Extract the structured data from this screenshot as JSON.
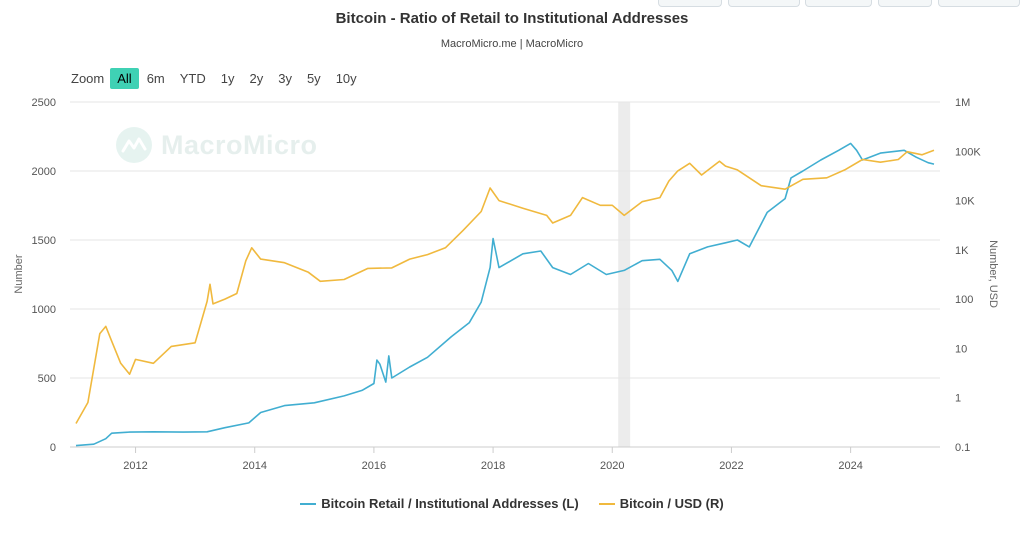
{
  "header": {
    "title": "Bitcoin - Ratio of Retail to Institutional Addresses",
    "subtitle": "MacroMicro.me | MacroMicro"
  },
  "zoom": {
    "label": "Zoom",
    "buttons": [
      "All",
      "6m",
      "YTD",
      "1y",
      "2y",
      "3y",
      "5y",
      "10y"
    ],
    "active_index": 0
  },
  "watermark": {
    "text": "MacroMicro"
  },
  "legend": {
    "items": [
      {
        "label": "Bitcoin Retail / Institutional Addresses (L)",
        "color": "#41aed1"
      },
      {
        "label": "Bitcoin / USD (R)",
        "color": "#f0b93e"
      }
    ]
  },
  "chart_data": {
    "type": "line",
    "title": "Bitcoin - Ratio of Retail to Institutional Addresses",
    "subtitle": "MacroMicro.me | MacroMicro",
    "x_range": [
      2010.9,
      2025.5
    ],
    "x_ticks": [
      2012,
      2014,
      2016,
      2018,
      2020,
      2022,
      2024
    ],
    "y_left": {
      "label": "Number",
      "range": [
        0,
        2500
      ],
      "ticks": [
        0,
        500,
        1000,
        1500,
        2000,
        2500
      ]
    },
    "y_right": {
      "label": "Number, USD",
      "scale": "log",
      "range": [
        0.1,
        1000000
      ],
      "ticks": [
        0.1,
        1,
        10,
        100,
        1000,
        10000,
        100000,
        1000000
      ],
      "tick_labels": [
        "0.1",
        "1",
        "10",
        "100",
        "1K",
        "10K",
        "100K",
        "1M"
      ]
    },
    "shaded_period": [
      2020.1,
      2020.3
    ],
    "grid": true,
    "series": [
      {
        "name": "Bitcoin Retail / Institutional Addresses (L)",
        "axis": "left",
        "color": "#41aed1",
        "points": [
          [
            2011.0,
            10
          ],
          [
            2011.3,
            20
          ],
          [
            2011.5,
            60
          ],
          [
            2011.6,
            100
          ],
          [
            2011.9,
            108
          ],
          [
            2012.3,
            110
          ],
          [
            2012.8,
            108
          ],
          [
            2013.2,
            110
          ],
          [
            2013.5,
            140
          ],
          [
            2013.9,
            175
          ],
          [
            2014.1,
            250
          ],
          [
            2014.5,
            300
          ],
          [
            2015.0,
            320
          ],
          [
            2015.5,
            370
          ],
          [
            2015.8,
            410
          ],
          [
            2016.0,
            460
          ],
          [
            2016.05,
            630
          ],
          [
            2016.1,
            600
          ],
          [
            2016.2,
            470
          ],
          [
            2016.25,
            660
          ],
          [
            2016.3,
            500
          ],
          [
            2016.6,
            580
          ],
          [
            2016.9,
            650
          ],
          [
            2017.3,
            800
          ],
          [
            2017.6,
            900
          ],
          [
            2017.8,
            1050
          ],
          [
            2017.95,
            1300
          ],
          [
            2018.0,
            1510
          ],
          [
            2018.1,
            1300
          ],
          [
            2018.5,
            1400
          ],
          [
            2018.8,
            1420
          ],
          [
            2019.0,
            1300
          ],
          [
            2019.3,
            1250
          ],
          [
            2019.6,
            1330
          ],
          [
            2019.9,
            1250
          ],
          [
            2020.2,
            1280
          ],
          [
            2020.5,
            1350
          ],
          [
            2020.8,
            1360
          ],
          [
            2021.0,
            1280
          ],
          [
            2021.1,
            1200
          ],
          [
            2021.3,
            1400
          ],
          [
            2021.6,
            1450
          ],
          [
            2021.9,
            1480
          ],
          [
            2022.1,
            1500
          ],
          [
            2022.3,
            1450
          ],
          [
            2022.6,
            1700
          ],
          [
            2022.9,
            1800
          ],
          [
            2023.0,
            1950
          ],
          [
            2023.2,
            2000
          ],
          [
            2023.5,
            2080
          ],
          [
            2023.8,
            2150
          ],
          [
            2024.0,
            2200
          ],
          [
            2024.1,
            2150
          ],
          [
            2024.2,
            2080
          ],
          [
            2024.5,
            2130
          ],
          [
            2024.9,
            2150
          ],
          [
            2025.1,
            2100
          ],
          [
            2025.3,
            2060
          ],
          [
            2025.4,
            2050
          ]
        ]
      },
      {
        "name": "Bitcoin / USD (R)",
        "axis": "right",
        "color": "#f0b93e",
        "points": [
          [
            2011.0,
            0.3
          ],
          [
            2011.2,
            0.8
          ],
          [
            2011.4,
            20
          ],
          [
            2011.5,
            28
          ],
          [
            2011.6,
            14
          ],
          [
            2011.75,
            5
          ],
          [
            2011.9,
            3
          ],
          [
            2012.0,
            6
          ],
          [
            2012.3,
            5
          ],
          [
            2012.6,
            11
          ],
          [
            2013.0,
            13
          ],
          [
            2013.2,
            90
          ],
          [
            2013.25,
            200
          ],
          [
            2013.3,
            80
          ],
          [
            2013.5,
            100
          ],
          [
            2013.7,
            130
          ],
          [
            2013.85,
            600
          ],
          [
            2013.95,
            1100
          ],
          [
            2014.1,
            650
          ],
          [
            2014.5,
            550
          ],
          [
            2014.9,
            350
          ],
          [
            2015.1,
            230
          ],
          [
            2015.5,
            250
          ],
          [
            2015.9,
            420
          ],
          [
            2016.3,
            430
          ],
          [
            2016.6,
            650
          ],
          [
            2016.9,
            800
          ],
          [
            2017.2,
            1100
          ],
          [
            2017.5,
            2500
          ],
          [
            2017.8,
            6000
          ],
          [
            2017.95,
            18000
          ],
          [
            2018.1,
            10000
          ],
          [
            2018.5,
            7000
          ],
          [
            2018.9,
            5000
          ],
          [
            2019.0,
            3500
          ],
          [
            2019.3,
            5000
          ],
          [
            2019.5,
            11500
          ],
          [
            2019.8,
            8000
          ],
          [
            2020.0,
            8000
          ],
          [
            2020.2,
            5000
          ],
          [
            2020.5,
            9500
          ],
          [
            2020.8,
            11500
          ],
          [
            2020.95,
            25000
          ],
          [
            2021.1,
            40000
          ],
          [
            2021.3,
            57000
          ],
          [
            2021.5,
            33000
          ],
          [
            2021.8,
            63000
          ],
          [
            2021.9,
            50000
          ],
          [
            2022.1,
            42000
          ],
          [
            2022.5,
            20000
          ],
          [
            2022.9,
            17000
          ],
          [
            2023.2,
            27000
          ],
          [
            2023.6,
            29000
          ],
          [
            2023.9,
            42000
          ],
          [
            2024.2,
            68000
          ],
          [
            2024.5,
            60000
          ],
          [
            2024.8,
            68000
          ],
          [
            2024.95,
            98000
          ],
          [
            2025.2,
            85000
          ],
          [
            2025.4,
            105000
          ]
        ]
      }
    ]
  }
}
